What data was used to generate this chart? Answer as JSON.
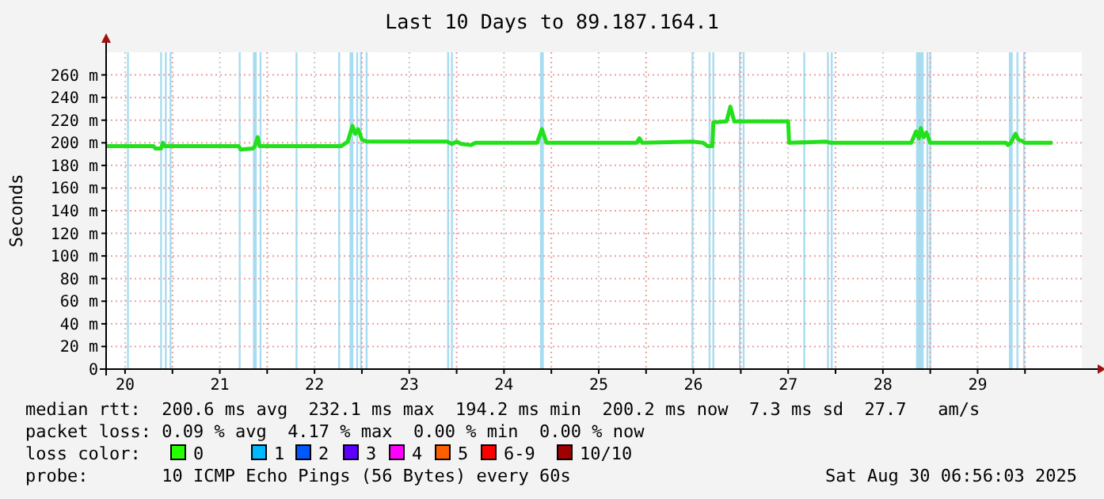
{
  "chart_data": {
    "type": "line",
    "title": "Last 10 Days to 89.187.164.1",
    "ylabel": "Seconds",
    "xlim": [
      20.3,
      30.6
    ],
    "ylim": [
      0,
      280
    ],
    "xticks": [
      {
        "value": 20.5,
        "label": "20"
      },
      {
        "value": 21,
        "label": null
      },
      {
        "value": 21.5,
        "label": "21"
      },
      {
        "value": 22,
        "label": null
      },
      {
        "value": 22.5,
        "label": "22"
      },
      {
        "value": 23,
        "label": null
      },
      {
        "value": 23.5,
        "label": "23"
      },
      {
        "value": 24,
        "label": null
      },
      {
        "value": 24.5,
        "label": "24"
      },
      {
        "value": 25,
        "label": null
      },
      {
        "value": 25.5,
        "label": "25"
      },
      {
        "value": 26,
        "label": null
      },
      {
        "value": 26.5,
        "label": "26"
      },
      {
        "value": 27,
        "label": null
      },
      {
        "value": 27.5,
        "label": "27"
      },
      {
        "value": 28,
        "label": null
      },
      {
        "value": 28.5,
        "label": "28"
      },
      {
        "value": 29,
        "label": null
      },
      {
        "value": 29.5,
        "label": "29"
      },
      {
        "value": 30,
        "label": null
      }
    ],
    "yticks": [
      0,
      {
        "value": 20,
        "label": "20 m"
      },
      {
        "value": 40,
        "label": "40 m"
      },
      {
        "value": 60,
        "label": "60 m"
      },
      {
        "value": 80,
        "label": "80 m"
      },
      {
        "value": 100,
        "label": "100 m"
      },
      {
        "value": 120,
        "label": "120 m"
      },
      {
        "value": 140,
        "label": "140 m"
      },
      {
        "value": 160,
        "label": "160 m"
      },
      {
        "value": 180,
        "label": "180 m"
      },
      {
        "value": 200,
        "label": "200 m"
      },
      {
        "value": 220,
        "label": "220 m"
      },
      {
        "value": 240,
        "label": "240 m"
      },
      {
        "value": 260,
        "label": "260 m"
      }
    ],
    "grid": true,
    "marker": "none",
    "line_style": "solid",
    "series": [
      {
        "color": "#22e01a",
        "x": [
          20.3,
          20.8,
          20.82,
          20.88,
          20.9,
          20.92,
          21.7,
          21.72,
          21.85,
          21.87,
          21.9,
          21.92,
          22.78,
          22.85,
          22.9,
          22.93,
          22.96,
          23.0,
          23.05,
          23.9,
          23.95,
          24.0,
          24.05,
          24.15,
          24.2,
          24.85,
          24.9,
          24.95,
          25.9,
          25.93,
          25.96,
          26.5,
          26.6,
          26.65,
          26.7,
          26.71,
          26.85,
          26.89,
          26.93,
          27.5,
          27.51,
          27.9,
          27.95,
          28.8,
          28.85,
          28.88,
          28.9,
          28.93,
          28.96,
          29.0,
          29.8,
          29.82,
          29.85,
          29.9,
          29.93,
          29.96,
          30.0,
          30.29
        ],
        "values": [
          197,
          197,
          195,
          195,
          200,
          197,
          197,
          194,
          195,
          197,
          205,
          197,
          197,
          201,
          215,
          208,
          212,
          203,
          201,
          201,
          199,
          201,
          199,
          198,
          200,
          200,
          212,
          200,
          200,
          204,
          200,
          201,
          200,
          197,
          197,
          218,
          219,
          232,
          219,
          219,
          200,
          201,
          200,
          200,
          210,
          204,
          213,
          205,
          209,
          200,
          200,
          198,
          200,
          208,
          203,
          202,
          200,
          200
        ]
      }
    ],
    "bands": [
      {
        "axis": "x",
        "from": 20.52,
        "to": 20.54,
        "color": "#a8dcf0"
      },
      {
        "axis": "x",
        "from": 20.87,
        "to": 20.89,
        "color": "#a8dcf0"
      },
      {
        "axis": "x",
        "from": 20.92,
        "to": 20.94,
        "color": "#a8dcf0"
      },
      {
        "axis": "x",
        "from": 20.97,
        "to": 20.99,
        "color": "#a8dcf0"
      },
      {
        "axis": "x",
        "from": 21.7,
        "to": 21.72,
        "color": "#a8dcf0"
      },
      {
        "axis": "x",
        "from": 21.85,
        "to": 21.89,
        "color": "#a8dcf0"
      },
      {
        "axis": "x",
        "from": 21.92,
        "to": 21.94,
        "color": "#a8dcf0"
      },
      {
        "axis": "x",
        "from": 22.3,
        "to": 22.32,
        "color": "#a8dcf0"
      },
      {
        "axis": "x",
        "from": 22.75,
        "to": 22.77,
        "color": "#a8dcf0"
      },
      {
        "axis": "x",
        "from": 22.87,
        "to": 22.91,
        "color": "#a8dcf0"
      },
      {
        "axis": "x",
        "from": 22.94,
        "to": 22.96,
        "color": "#a8dcf0"
      },
      {
        "axis": "x",
        "from": 22.98,
        "to": 23.0,
        "color": "#a8dcf0"
      },
      {
        "axis": "x",
        "from": 23.04,
        "to": 23.06,
        "color": "#a8dcf0"
      },
      {
        "axis": "x",
        "from": 23.9,
        "to": 23.92,
        "color": "#a8dcf0"
      },
      {
        "axis": "x",
        "from": 23.94,
        "to": 23.96,
        "color": "#a8dcf0"
      },
      {
        "axis": "x",
        "from": 24.88,
        "to": 24.92,
        "color": "#a8dcf0"
      },
      {
        "axis": "x",
        "from": 26.48,
        "to": 26.5,
        "color": "#a8dcf0"
      },
      {
        "axis": "x",
        "from": 26.66,
        "to": 26.68,
        "color": "#a8dcf0"
      },
      {
        "axis": "x",
        "from": 26.7,
        "to": 26.72,
        "color": "#a8dcf0"
      },
      {
        "axis": "x",
        "from": 26.98,
        "to": 27.0,
        "color": "#a8dcf0"
      },
      {
        "axis": "x",
        "from": 27.02,
        "to": 27.04,
        "color": "#a8dcf0"
      },
      {
        "axis": "x",
        "from": 27.66,
        "to": 27.68,
        "color": "#a8dcf0"
      },
      {
        "axis": "x",
        "from": 27.91,
        "to": 27.93,
        "color": "#a8dcf0"
      },
      {
        "axis": "x",
        "from": 27.95,
        "to": 27.97,
        "color": "#a8dcf0"
      },
      {
        "axis": "x",
        "from": 28.85,
        "to": 28.93,
        "color": "#a8dcf0"
      },
      {
        "axis": "x",
        "from": 28.96,
        "to": 28.98,
        "color": "#a8dcf0"
      },
      {
        "axis": "x",
        "from": 28.99,
        "to": 29.01,
        "color": "#a8dcf0"
      },
      {
        "axis": "x",
        "from": 29.83,
        "to": 29.87,
        "color": "#a8dcf0"
      },
      {
        "axis": "x",
        "from": 29.91,
        "to": 29.93,
        "color": "#a8dcf0"
      },
      {
        "axis": "x",
        "from": 29.98,
        "to": 30.0,
        "color": "#a8dcf0"
      }
    ],
    "annotations": [
      "median rtt:  200.6 ms avg  232.1 ms max  194.2 ms min  200.2 ms now  7.3 ms sd  27.7   am/s",
      "packet loss: 0.09 % avg  4.17 % max  0.00 % min  0.00 % now",
      "loss color:",
      "0",
      "1",
      "2",
      "3",
      "4",
      "5",
      "6-9",
      "10/10",
      "probe:       10 ICMP Echo Pings (56 Bytes) every 60s",
      "Sat Aug 30 06:56:03 2025"
    ]
  }
}
